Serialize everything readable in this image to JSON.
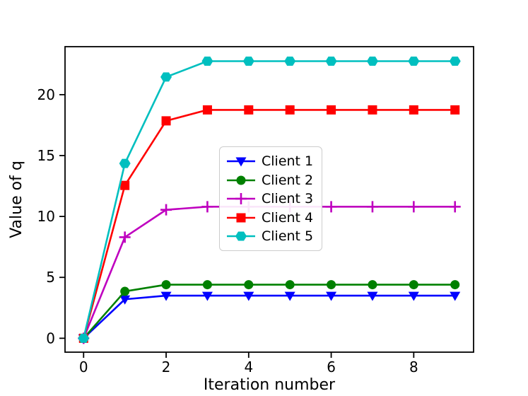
{
  "chart_data": {
    "type": "line",
    "title": "",
    "xlabel": "Iteration number",
    "ylabel": "Value of q",
    "x": [
      0,
      1,
      2,
      3,
      4,
      5,
      6,
      7,
      8,
      9
    ],
    "series": [
      {
        "name": "Client 1",
        "color": "#0000ff",
        "marker": "triangle-down",
        "values": [
          0,
          3.2,
          3.5,
          3.5,
          3.5,
          3.5,
          3.5,
          3.5,
          3.5,
          3.5
        ]
      },
      {
        "name": "Client 2",
        "color": "#008000",
        "marker": "circle",
        "values": [
          0,
          3.85,
          4.4,
          4.4,
          4.4,
          4.4,
          4.4,
          4.4,
          4.4,
          4.4
        ]
      },
      {
        "name": "Client 3",
        "color": "#bf00bf",
        "marker": "plus",
        "values": [
          0,
          8.3,
          10.55,
          10.8,
          10.8,
          10.8,
          10.8,
          10.8,
          10.8,
          10.8
        ]
      },
      {
        "name": "Client 4",
        "color": "#ff0000",
        "marker": "square",
        "values": [
          0,
          12.55,
          17.85,
          18.75,
          18.75,
          18.75,
          18.75,
          18.75,
          18.75,
          18.75
        ]
      },
      {
        "name": "Client 5",
        "color": "#00bfbf",
        "marker": "hexagon",
        "values": [
          0,
          14.35,
          21.45,
          22.75,
          22.75,
          22.75,
          22.75,
          22.75,
          22.75,
          22.75
        ]
      }
    ],
    "xticks": [
      0,
      2,
      4,
      6,
      8
    ],
    "yticks": [
      0,
      5,
      10,
      15,
      20
    ],
    "xlim": [
      -0.45,
      9.45
    ],
    "ylim": [
      -1.14,
      23.94
    ],
    "grid": false,
    "legend_position": "center",
    "axis_color": "#000000",
    "legend_border_color": "#cccccc",
    "background_color": "#ffffff"
  }
}
